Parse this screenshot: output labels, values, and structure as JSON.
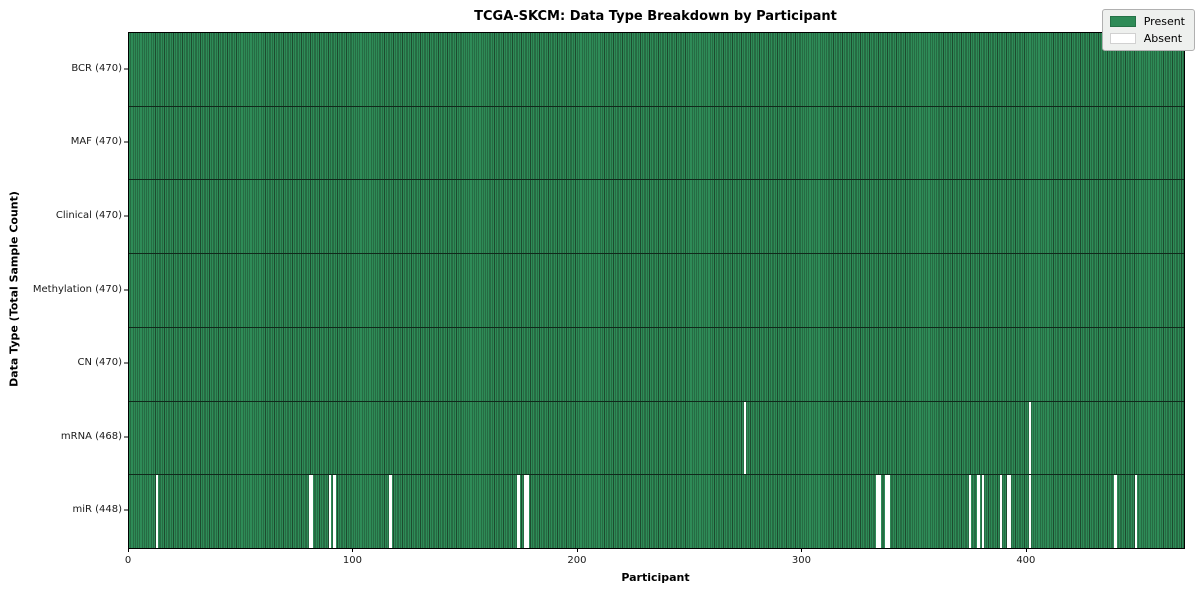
{
  "title": "TCGA-SKCM: Data Type Breakdown by Participant",
  "axes": {
    "xlabel": "Participant",
    "ylabel": "Data Type (Total Sample Count)"
  },
  "legend": {
    "items": [
      {
        "label": "Present",
        "color": "#2e8b57"
      },
      {
        "label": "Absent",
        "color": "#ffffff"
      }
    ]
  },
  "chart_data": {
    "type": "heatmap",
    "title": "TCGA-SKCM: Data Type Breakdown by Participant",
    "xlabel": "Participant",
    "ylabel": "Data Type (Total Sample Count)",
    "x_range": [
      0,
      470
    ],
    "x_ticks": [
      0,
      100,
      200,
      300,
      400
    ],
    "legend_position": "upper right",
    "colors": {
      "present": "#2e8b57",
      "absent": "#ffffff",
      "cell_edge": "#1d4b2f"
    },
    "rows": [
      {
        "label": "BCR (470)",
        "total": 470,
        "absent_participants": []
      },
      {
        "label": "MAF (470)",
        "total": 470,
        "absent_participants": []
      },
      {
        "label": "Clinical (470)",
        "total": 470,
        "absent_participants": []
      },
      {
        "label": "Methylation (470)",
        "total": 470,
        "absent_participants": []
      },
      {
        "label": "CN (470)",
        "total": 470,
        "absent_participants": []
      },
      {
        "label": "mRNA (468)",
        "total": 468,
        "absent_participants": [
          274,
          401
        ]
      },
      {
        "label": "miR (448)",
        "total": 448,
        "absent_participants": [
          12,
          80,
          81,
          89,
          91,
          116,
          173,
          176,
          177,
          333,
          334,
          337,
          338,
          374,
          378,
          380,
          388,
          391,
          392,
          401,
          439,
          448
        ]
      }
    ]
  }
}
